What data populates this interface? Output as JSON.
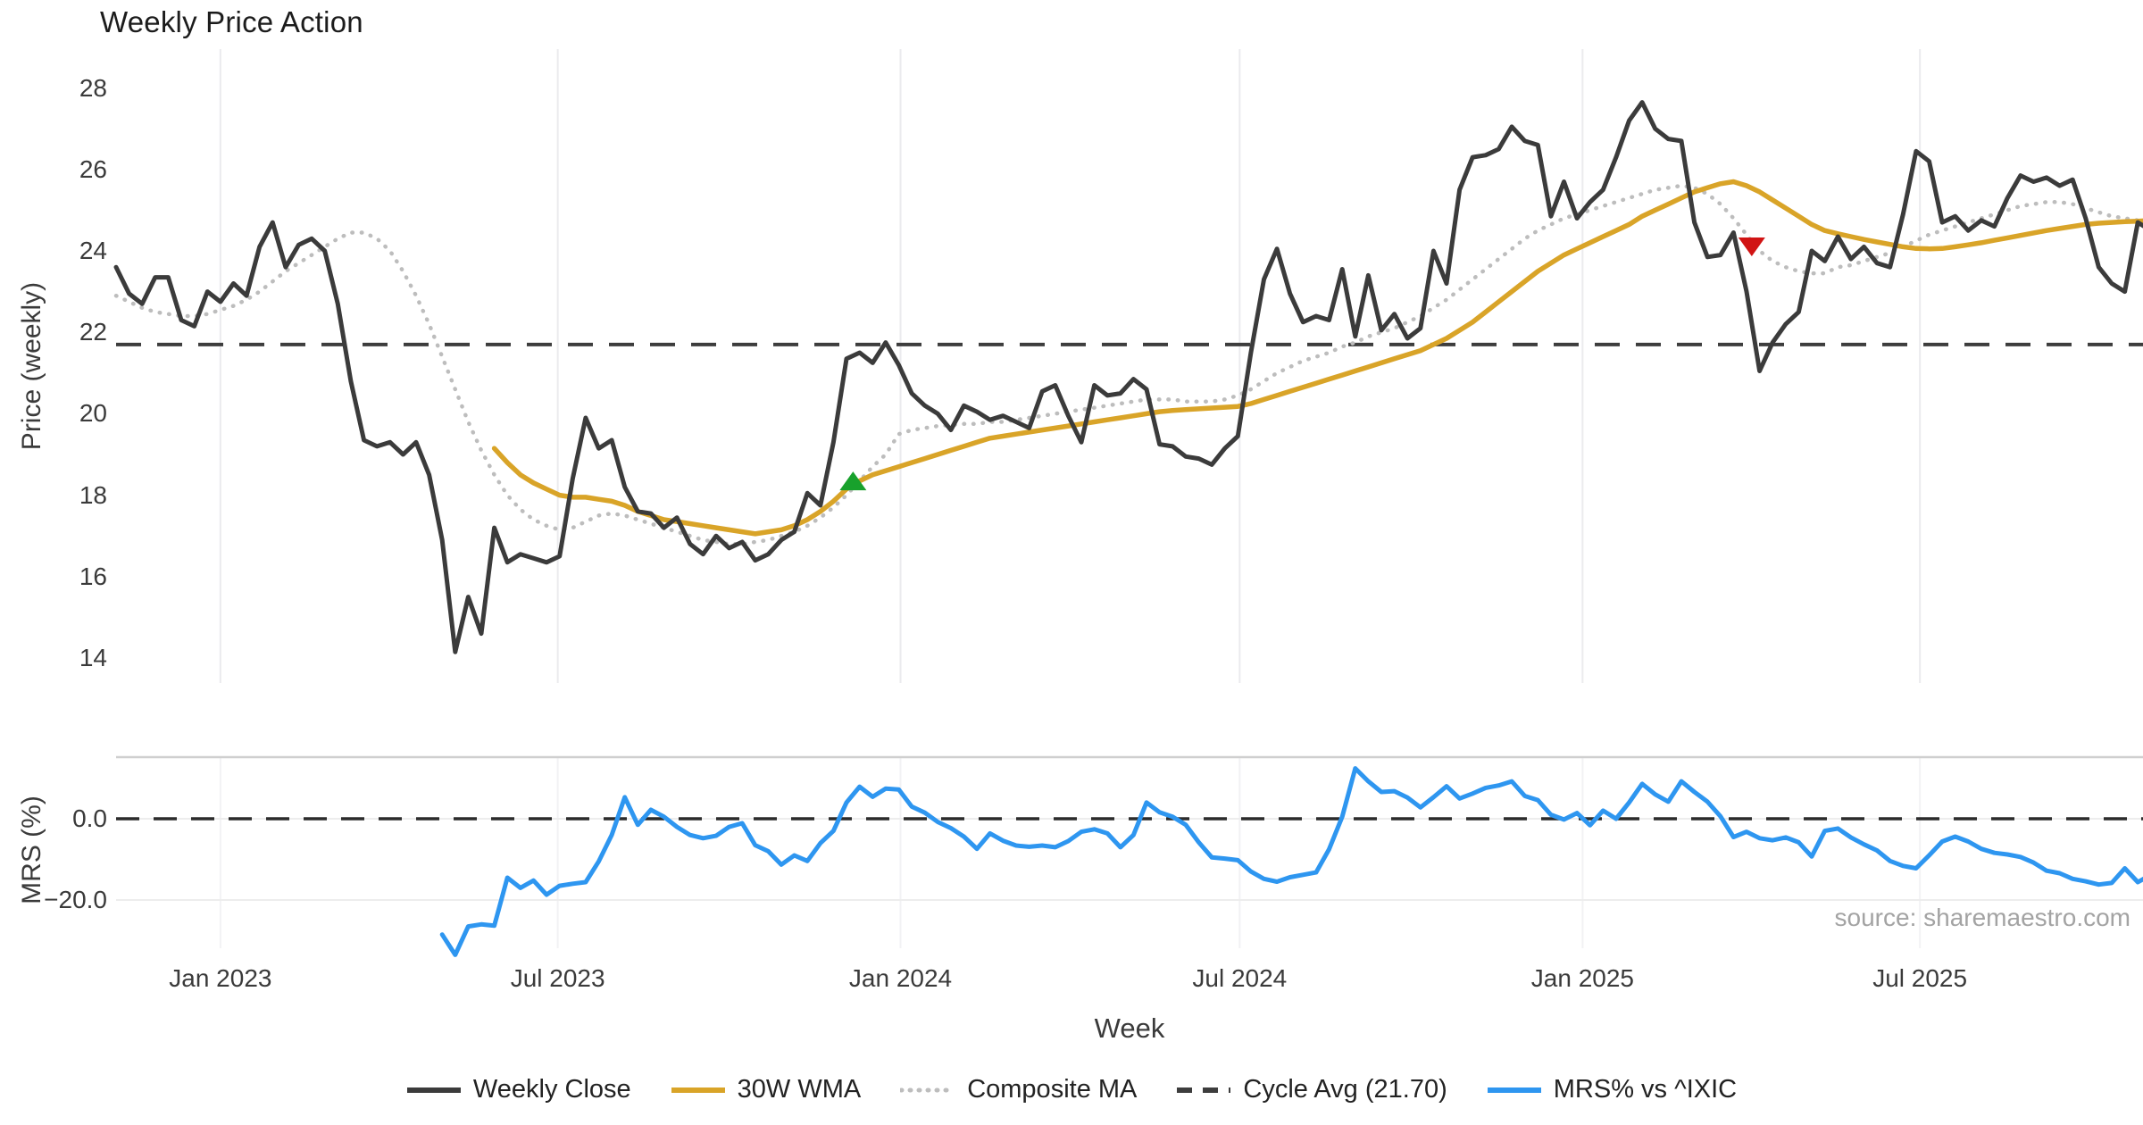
{
  "title": "Weekly Price Action",
  "axes": {
    "price_label": "Price (weekly)",
    "mrs_label": "MRS (%)",
    "week_label": "Week",
    "price_ticks": [
      28,
      26,
      24,
      22,
      20,
      18,
      16,
      14
    ],
    "mrs_ticks": [
      {
        "label": "0.0",
        "value": 0
      },
      {
        "label": "−20.0",
        "value": -20
      }
    ],
    "x_ticks": [
      {
        "week": 8.0,
        "label": "Jan 2023"
      },
      {
        "week": 33.86,
        "label": "Jul 2023"
      },
      {
        "week": 60.14,
        "label": "Jan 2024"
      },
      {
        "week": 86.14,
        "label": "Jul 2024"
      },
      {
        "week": 112.43,
        "label": "Jan 2025"
      },
      {
        "week": 138.29,
        "label": "Jul 2025"
      }
    ]
  },
  "source_note": "source: sharemaestro.com",
  "legend": {
    "items": [
      {
        "label": "Weekly Close",
        "color": "#3b3b3b",
        "style": "solid"
      },
      {
        "label": "30W WMA",
        "color": "#d9a428",
        "style": "solid"
      },
      {
        "label": "Composite MA",
        "color": "#bdbdbd",
        "style": "dotted"
      },
      {
        "label": "Cycle Avg (21.70)",
        "color": "#3d3d3d",
        "style": "dashed"
      },
      {
        "label": "MRS% vs ^IXIC",
        "color": "#2e96f0",
        "style": "solid"
      }
    ]
  },
  "colors": {
    "weekly_close": "#3b3b3b",
    "wma_30w": "#d9a428",
    "composite_ma": "#bdbdbd",
    "cycle_avg": "#3d3d3d",
    "mrs": "#2e96f0",
    "buy_marker": "#18a12c",
    "sell_marker": "#d11414",
    "gridline": "#ebebee",
    "panel_separator": "#cfcfcf"
  },
  "chart_data": [
    {
      "type": "line",
      "panel": "price",
      "title": "Weekly Price Action",
      "xlabel": "Week",
      "ylabel": "Price (weekly)",
      "ylim": [
        13.4,
        29.0
      ],
      "x_start_date": "2022-11-06",
      "x_freq_days": 7,
      "cycle_avg": 21.7,
      "grid": "vertical-only",
      "legend_position": "bottom",
      "series": [
        {
          "name": "Weekly Close",
          "values": [
            23.6,
            22.95,
            22.7,
            23.35,
            23.35,
            22.3,
            22.15,
            23.0,
            22.75,
            23.2,
            22.9,
            24.1,
            24.7,
            23.6,
            24.15,
            24.3,
            24.0,
            22.7,
            20.8,
            19.35,
            19.2,
            19.3,
            19.0,
            19.3,
            18.5,
            16.9,
            14.15,
            15.5,
            14.6,
            17.2,
            16.35,
            16.55,
            16.45,
            16.35,
            16.5,
            18.4,
            19.9,
            19.15,
            19.35,
            18.2,
            17.6,
            17.55,
            17.2,
            17.45,
            16.8,
            16.55,
            17.0,
            16.7,
            16.85,
            16.4,
            16.55,
            16.9,
            17.1,
            18.05,
            17.75,
            19.3,
            21.35,
            21.5,
            21.25,
            21.75,
            21.2,
            20.5,
            20.2,
            20.0,
            19.6,
            20.2,
            20.05,
            19.85,
            19.95,
            19.8,
            19.65,
            20.55,
            20.7,
            19.95,
            19.3,
            20.7,
            20.45,
            20.5,
            20.85,
            20.6,
            19.25,
            19.2,
            18.95,
            18.9,
            18.75,
            19.15,
            19.45,
            21.5,
            23.3,
            24.05,
            22.95,
            22.25,
            22.4,
            22.3,
            23.55,
            21.9,
            23.4,
            22.05,
            22.45,
            21.85,
            22.1,
            24.0,
            23.2,
            25.5,
            26.3,
            26.35,
            26.5,
            27.05,
            26.7,
            26.6,
            24.85,
            25.7,
            24.8,
            25.2,
            25.5,
            26.3,
            27.2,
            27.65,
            27.0,
            26.75,
            26.7,
            24.7,
            23.85,
            23.9,
            24.45,
            23.0,
            21.05,
            21.75,
            22.2,
            22.5,
            24.0,
            23.75,
            24.35,
            23.8,
            24.1,
            23.7,
            23.6,
            24.9,
            26.45,
            26.2,
            24.7,
            24.85,
            24.5,
            24.75,
            24.6,
            25.3,
            25.85,
            25.7,
            25.8,
            25.6,
            25.75,
            24.8,
            23.6,
            23.2,
            23.0,
            24.7,
            24.5
          ]
        },
        {
          "name": "30W WMA",
          "values": [
            null,
            null,
            null,
            null,
            null,
            null,
            null,
            null,
            null,
            null,
            null,
            null,
            null,
            null,
            null,
            null,
            null,
            null,
            null,
            null,
            null,
            null,
            null,
            null,
            null,
            null,
            null,
            null,
            null,
            19.15,
            18.8,
            18.5,
            18.3,
            18.15,
            18.0,
            17.95,
            17.95,
            17.9,
            17.85,
            17.75,
            17.6,
            17.5,
            17.4,
            17.35,
            17.3,
            17.25,
            17.2,
            17.15,
            17.1,
            17.05,
            17.1,
            17.15,
            17.25,
            17.4,
            17.6,
            17.85,
            18.15,
            18.35,
            18.5,
            18.6,
            18.7,
            18.8,
            18.9,
            19.0,
            19.1,
            19.2,
            19.3,
            19.4,
            19.45,
            19.5,
            19.55,
            19.6,
            19.65,
            19.7,
            19.75,
            19.8,
            19.85,
            19.9,
            19.95,
            20.0,
            20.05,
            20.08,
            20.1,
            20.12,
            20.14,
            20.16,
            20.18,
            20.25,
            20.35,
            20.45,
            20.55,
            20.65,
            20.75,
            20.85,
            20.95,
            21.05,
            21.15,
            21.25,
            21.35,
            21.45,
            21.55,
            21.7,
            21.85,
            22.05,
            22.25,
            22.5,
            22.75,
            23.0,
            23.25,
            23.5,
            23.7,
            23.9,
            24.05,
            24.2,
            24.35,
            24.5,
            24.65,
            24.85,
            25.0,
            25.15,
            25.3,
            25.45,
            25.55,
            25.65,
            25.7,
            25.6,
            25.45,
            25.25,
            25.05,
            24.85,
            24.65,
            24.5,
            24.42,
            24.35,
            24.28,
            24.22,
            24.16,
            24.1,
            24.06,
            24.05,
            24.06,
            24.1,
            24.15,
            24.2,
            24.26,
            24.32,
            24.38,
            24.44,
            24.5,
            24.55,
            24.6,
            24.65,
            24.68,
            24.7,
            24.72,
            24.73,
            24.75
          ]
        },
        {
          "name": "Composite MA",
          "values": [
            22.9,
            22.75,
            22.6,
            22.5,
            22.45,
            22.4,
            22.4,
            22.45,
            22.55,
            22.65,
            22.8,
            23.0,
            23.25,
            23.5,
            23.7,
            23.9,
            24.1,
            24.3,
            24.45,
            24.45,
            24.3,
            24.0,
            23.5,
            22.9,
            22.2,
            21.4,
            20.6,
            19.8,
            19.1,
            18.5,
            18.0,
            17.65,
            17.4,
            17.25,
            17.15,
            17.2,
            17.35,
            17.5,
            17.55,
            17.5,
            17.4,
            17.3,
            17.2,
            17.1,
            17.0,
            16.9,
            16.85,
            16.8,
            16.8,
            16.85,
            16.9,
            17.0,
            17.1,
            17.25,
            17.45,
            17.7,
            18.0,
            18.35,
            18.7,
            19.0,
            19.5,
            19.6,
            19.65,
            19.7,
            19.72,
            19.75,
            19.75,
            19.8,
            19.8,
            19.85,
            19.9,
            19.95,
            20.0,
            20.05,
            20.1,
            20.15,
            20.2,
            20.25,
            20.3,
            20.35,
            20.35,
            20.35,
            20.3,
            20.3,
            20.3,
            20.35,
            20.45,
            20.6,
            20.8,
            21.0,
            21.15,
            21.3,
            21.4,
            21.5,
            21.65,
            21.75,
            21.9,
            22.0,
            22.1,
            22.25,
            22.4,
            22.6,
            22.8,
            23.05,
            23.3,
            23.55,
            23.8,
            24.05,
            24.3,
            24.5,
            24.65,
            24.8,
            24.9,
            25.0,
            25.1,
            25.2,
            25.3,
            25.4,
            25.5,
            25.55,
            25.6,
            25.55,
            25.4,
            25.15,
            24.8,
            24.4,
            24.0,
            23.75,
            23.6,
            23.5,
            23.45,
            23.45,
            23.6,
            23.65,
            23.75,
            23.85,
            23.95,
            24.1,
            24.25,
            24.4,
            24.5,
            24.6,
            24.7,
            24.8,
            24.9,
            25.0,
            25.1,
            25.15,
            25.2,
            25.2,
            25.15,
            25.05,
            24.95,
            24.85,
            24.8,
            24.75,
            24.7
          ]
        }
      ],
      "markers": [
        {
          "shape": "triangle-up",
          "color": "#18a12c",
          "week": 56.5,
          "price": 18.35,
          "meaning": "buy-signal"
        },
        {
          "shape": "triangle-down",
          "color": "#d11414",
          "week": 125.4,
          "price": 24.1,
          "meaning": "sell-signal"
        }
      ]
    },
    {
      "type": "line",
      "panel": "mrs",
      "ylabel": "MRS (%)",
      "ylim": [
        -36,
        16
      ],
      "zero_line_dashed": true,
      "x_start_date": "2022-11-06",
      "x_freq_days": 7,
      "series": [
        {
          "name": "MRS% vs ^IXIC",
          "first_week_index": 25,
          "values": [
            -28.5,
            -33.5,
            -26.5,
            -26.0,
            -26.3,
            -14.5,
            -17.0,
            -15.2,
            -18.7,
            -16.5,
            -16.0,
            -15.6,
            -10.5,
            -4.0,
            5.3,
            -1.5,
            2.2,
            0.5,
            -2.0,
            -4.0,
            -4.8,
            -4.2,
            -2.0,
            -1.1,
            -6.5,
            -8.0,
            -11.3,
            -9.0,
            -10.4,
            -6.0,
            -3.0,
            4.0,
            7.9,
            5.4,
            7.4,
            7.2,
            3.0,
            1.5,
            -0.8,
            -2.3,
            -4.4,
            -7.4,
            -3.6,
            -5.4,
            -6.6,
            -6.9,
            -6.6,
            -7.0,
            -5.5,
            -3.2,
            -2.6,
            -3.6,
            -7.0,
            -4.0,
            4.0,
            1.6,
            0.5,
            -1.5,
            -5.8,
            -9.5,
            -9.8,
            -10.2,
            -13.0,
            -14.8,
            -15.5,
            -14.4,
            -13.8,
            -13.2,
            -7.5,
            0.5,
            12.4,
            9.2,
            6.6,
            6.8,
            5.2,
            2.8,
            5.3,
            8.0,
            5.0,
            6.2,
            7.6,
            8.2,
            9.2,
            5.6,
            4.6,
            1.0,
            -0.2,
            1.4,
            -1.6,
            2.0,
            0.0,
            4.0,
            8.6,
            6.0,
            4.2,
            9.2,
            6.6,
            4.2,
            0.6,
            -4.5,
            -3.2,
            -4.8,
            -5.3,
            -4.6,
            -5.8,
            -9.3,
            -3.0,
            -2.4,
            -4.6,
            -6.3,
            -7.8,
            -10.4,
            -11.6,
            -12.2,
            -9.0,
            -5.6,
            -4.4,
            -5.6,
            -7.4,
            -8.4,
            -8.8,
            -9.4,
            -10.8,
            -12.8,
            -13.4,
            -14.8,
            -15.4,
            -16.2,
            -15.8,
            -12.2,
            -15.6,
            -13.8
          ]
        }
      ]
    }
  ]
}
